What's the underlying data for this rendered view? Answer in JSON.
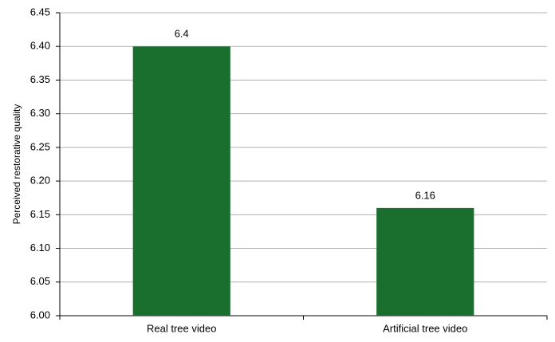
{
  "chart_data": {
    "type": "bar",
    "y_label": "Perceived restorative quality",
    "categories": [
      "Real tree video",
      "Artificial tree video"
    ],
    "values": [
      6.4,
      6.16
    ],
    "color": "#1a6e2e",
    "ylim": [
      6.0,
      6.45
    ],
    "yticks": [
      {
        "value": 6.0,
        "label": "6.00"
      },
      {
        "value": 6.05,
        "label": "6.05"
      },
      {
        "value": 6.1,
        "label": "6.10"
      },
      {
        "value": 6.15,
        "label": "6.15"
      },
      {
        "value": 6.2,
        "label": "6.20"
      },
      {
        "value": 6.25,
        "label": "6.25"
      },
      {
        "value": 6.3,
        "label": "6.30"
      },
      {
        "value": 6.35,
        "label": "6.35"
      },
      {
        "value": 6.4,
        "label": "6.40"
      },
      {
        "value": 6.45,
        "label": "6.45"
      }
    ],
    "grid": true
  }
}
